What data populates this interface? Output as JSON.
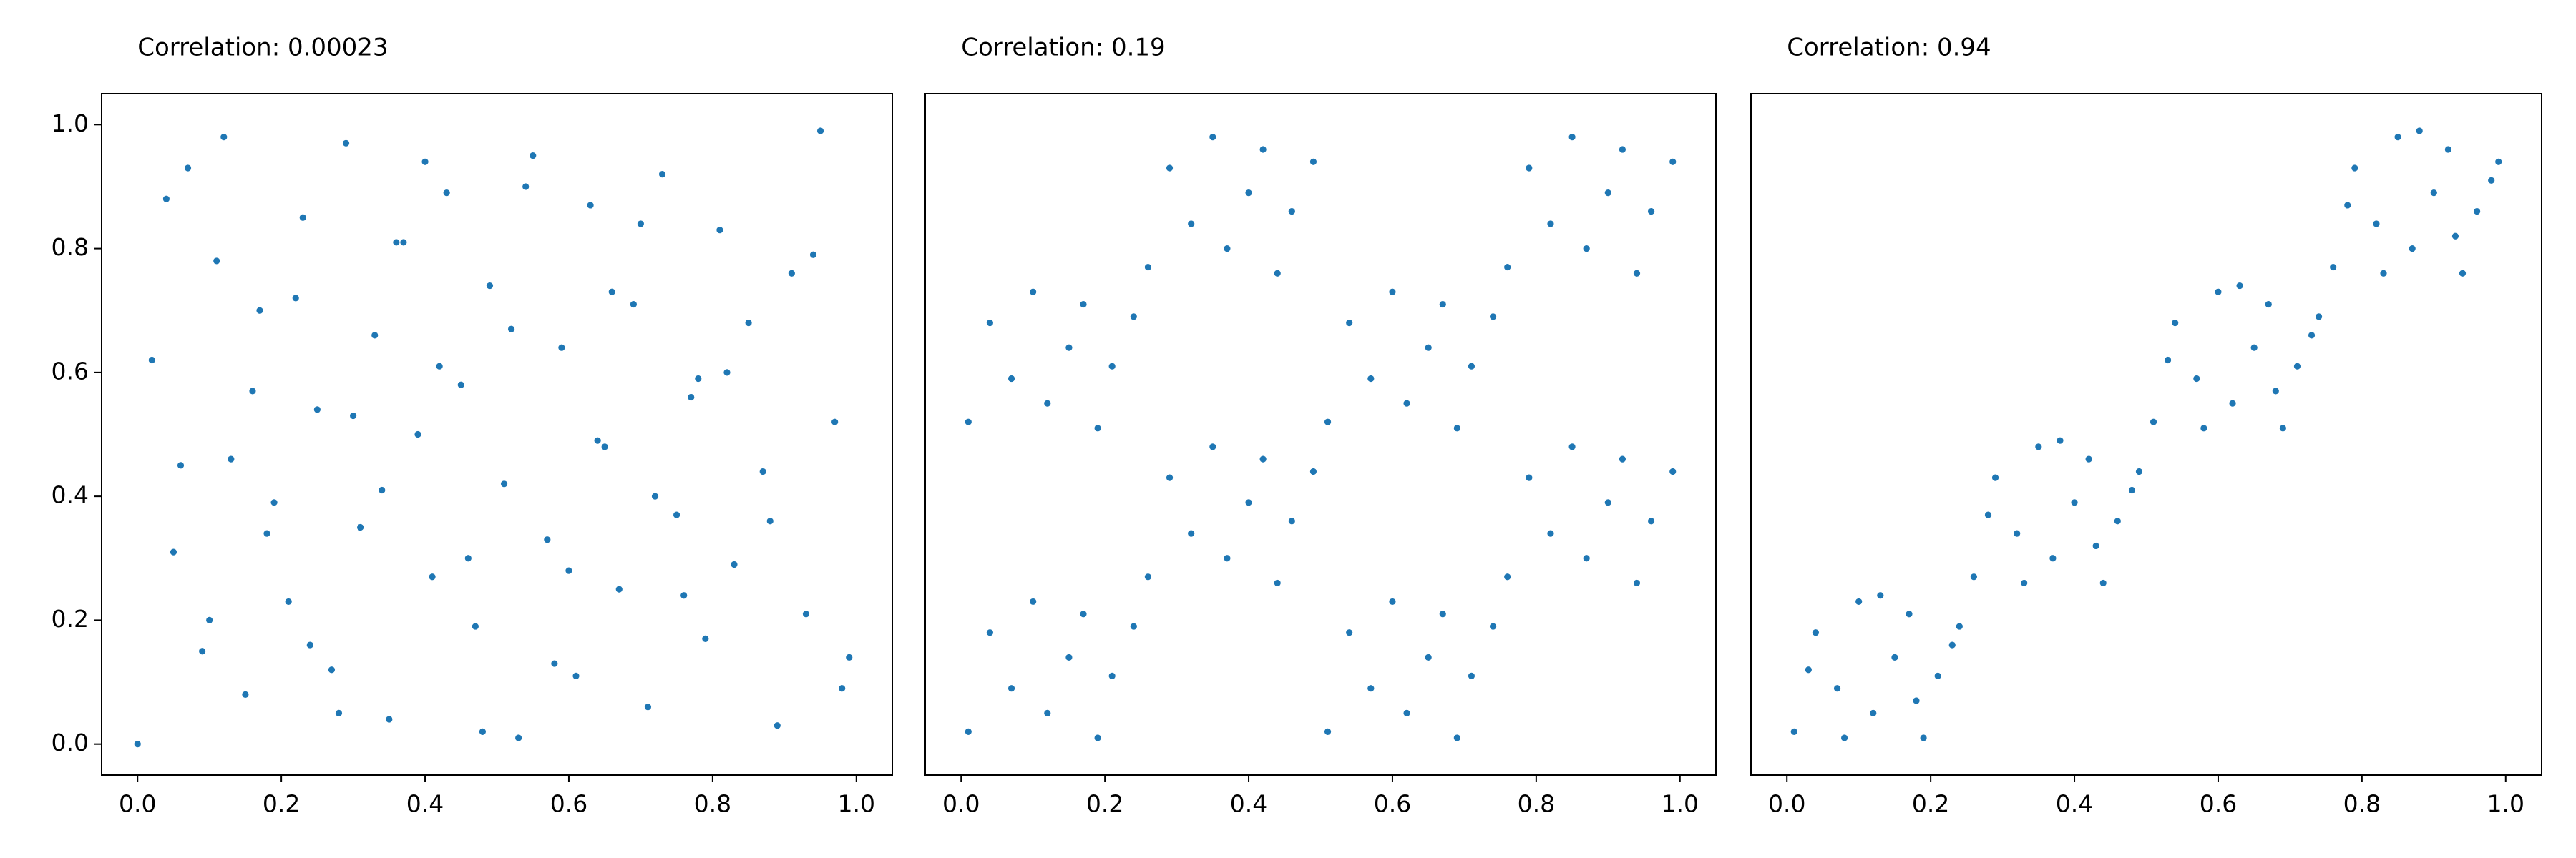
{
  "chart_data": [
    {
      "type": "scatter",
      "title": "Correlation: 0.00023",
      "color": "#1f77b4",
      "x": [
        0.0,
        0.02,
        0.05,
        0.07,
        0.09,
        0.11,
        0.13,
        0.15,
        0.17,
        0.19,
        0.21,
        0.23,
        0.25,
        0.27,
        0.29,
        0.31,
        0.33,
        0.35,
        0.37,
        0.39,
        0.41,
        0.43,
        0.45,
        0.47,
        0.49,
        0.51,
        0.53,
        0.55,
        0.57,
        0.59,
        0.61,
        0.63,
        0.65,
        0.67,
        0.69,
        0.71,
        0.73,
        0.75,
        0.77,
        0.79,
        0.81,
        0.83,
        0.85,
        0.87,
        0.89,
        0.91,
        0.93,
        0.95,
        0.97,
        0.99,
        0.04,
        0.1,
        0.16,
        0.22,
        0.28,
        0.34,
        0.4,
        0.46,
        0.52,
        0.58,
        0.64,
        0.7,
        0.76,
        0.82,
        0.88,
        0.94,
        0.98,
        0.06,
        0.12,
        0.18,
        0.24,
        0.3,
        0.36,
        0.42,
        0.48,
        0.54,
        0.6,
        0.66,
        0.72,
        0.78
      ],
      "y": [
        0.0,
        0.62,
        0.31,
        0.93,
        0.15,
        0.78,
        0.46,
        0.08,
        0.7,
        0.39,
        0.23,
        0.85,
        0.54,
        0.12,
        0.97,
        0.35,
        0.66,
        0.04,
        0.81,
        0.5,
        0.27,
        0.89,
        0.58,
        0.19,
        0.74,
        0.42,
        0.01,
        0.95,
        0.33,
        0.64,
        0.11,
        0.87,
        0.48,
        0.25,
        0.71,
        0.06,
        0.92,
        0.37,
        0.56,
        0.17,
        0.83,
        0.29,
        0.68,
        0.44,
        0.03,
        0.76,
        0.21,
        0.99,
        0.52,
        0.14,
        0.88,
        0.2,
        0.57,
        0.72,
        0.05,
        0.41,
        0.94,
        0.3,
        0.67,
        0.13,
        0.49,
        0.84,
        0.24,
        0.6,
        0.36,
        0.79,
        0.09,
        0.45,
        0.98,
        0.34,
        0.16,
        0.53,
        0.81,
        0.61,
        0.02,
        0.9,
        0.28,
        0.73,
        0.4,
        0.59
      ],
      "xlim": [
        -0.05,
        1.05
      ],
      "ylim": [
        -0.05,
        1.05
      ],
      "xticks": [
        {
          "value": 0,
          "label": "0.0"
        },
        {
          "value": 0.2,
          "label": "0.2"
        },
        {
          "value": 0.4,
          "label": "0.4"
        },
        {
          "value": 0.6,
          "label": "0.6"
        },
        {
          "value": 0.8,
          "label": "0.8"
        },
        {
          "value": 1,
          "label": "1.0"
        }
      ],
      "yticks": [
        {
          "value": 0,
          "label": "0.0"
        },
        {
          "value": 0.2,
          "label": "0.2"
        },
        {
          "value": 0.4,
          "label": "0.4"
        },
        {
          "value": 0.6,
          "label": "0.6"
        },
        {
          "value": 0.8,
          "label": "0.8"
        },
        {
          "value": 1,
          "label": "1.0"
        }
      ]
    },
    {
      "type": "scatter",
      "title": "Correlation: 0.19",
      "color": "#1f77b4",
      "x": [
        0.01,
        0.04,
        0.07,
        0.1,
        0.12,
        0.15,
        0.17,
        0.19,
        0.21,
        0.24,
        0.01,
        0.04,
        0.07,
        0.1,
        0.12,
        0.15,
        0.17,
        0.19,
        0.21,
        0.24,
        0.26,
        0.29,
        0.32,
        0.35,
        0.37,
        0.4,
        0.42,
        0.44,
        0.46,
        0.49,
        0.26,
        0.29,
        0.32,
        0.35,
        0.37,
        0.4,
        0.42,
        0.44,
        0.46,
        0.49,
        0.51,
        0.54,
        0.57,
        0.6,
        0.62,
        0.65,
        0.67,
        0.69,
        0.71,
        0.74,
        0.51,
        0.54,
        0.57,
        0.6,
        0.62,
        0.65,
        0.67,
        0.69,
        0.71,
        0.74,
        0.76,
        0.79,
        0.82,
        0.85,
        0.87,
        0.9,
        0.92,
        0.94,
        0.96,
        0.99,
        0.76,
        0.79,
        0.82,
        0.85,
        0.87,
        0.9,
        0.92,
        0.94,
        0.96,
        0.99
      ],
      "y": [
        0.02,
        0.18,
        0.09,
        0.23,
        0.05,
        0.14,
        0.21,
        0.01,
        0.11,
        0.19,
        0.52,
        0.68,
        0.59,
        0.73,
        0.55,
        0.64,
        0.71,
        0.51,
        0.61,
        0.69,
        0.27,
        0.43,
        0.34,
        0.48,
        0.3,
        0.39,
        0.46,
        0.26,
        0.36,
        0.44,
        0.77,
        0.93,
        0.84,
        0.98,
        0.8,
        0.89,
        0.96,
        0.76,
        0.86,
        0.94,
        0.02,
        0.18,
        0.09,
        0.23,
        0.05,
        0.14,
        0.21,
        0.01,
        0.11,
        0.19,
        0.52,
        0.68,
        0.59,
        0.73,
        0.55,
        0.64,
        0.71,
        0.51,
        0.61,
        0.69,
        0.27,
        0.43,
        0.34,
        0.48,
        0.3,
        0.39,
        0.46,
        0.26,
        0.36,
        0.44,
        0.77,
        0.93,
        0.84,
        0.98,
        0.8,
        0.89,
        0.96,
        0.76,
        0.86,
        0.94
      ],
      "xlim": [
        -0.05,
        1.05
      ],
      "ylim": [
        -0.05,
        1.05
      ],
      "xticks": [
        {
          "value": 0,
          "label": "0.0"
        },
        {
          "value": 0.2,
          "label": "0.2"
        },
        {
          "value": 0.4,
          "label": "0.4"
        },
        {
          "value": 0.6,
          "label": "0.6"
        },
        {
          "value": 0.8,
          "label": "0.8"
        },
        {
          "value": 1,
          "label": "1.0"
        }
      ]
    },
    {
      "type": "scatter",
      "title": "Correlation: 0.94",
      "color": "#1f77b4",
      "x": [
        0.01,
        0.04,
        0.07,
        0.1,
        0.12,
        0.15,
        0.17,
        0.19,
        0.21,
        0.24,
        0.03,
        0.08,
        0.13,
        0.18,
        0.23,
        0.26,
        0.29,
        0.32,
        0.35,
        0.37,
        0.4,
        0.42,
        0.44,
        0.46,
        0.49,
        0.28,
        0.33,
        0.38,
        0.43,
        0.48,
        0.51,
        0.54,
        0.57,
        0.6,
        0.62,
        0.65,
        0.67,
        0.69,
        0.71,
        0.74,
        0.53,
        0.58,
        0.63,
        0.68,
        0.73,
        0.76,
        0.79,
        0.82,
        0.85,
        0.87,
        0.9,
        0.92,
        0.94,
        0.96,
        0.99,
        0.78,
        0.83,
        0.88,
        0.93,
        0.98
      ],
      "y": [
        0.02,
        0.18,
        0.09,
        0.23,
        0.05,
        0.14,
        0.21,
        0.01,
        0.11,
        0.19,
        0.12,
        0.01,
        0.24,
        0.07,
        0.16,
        0.27,
        0.43,
        0.34,
        0.48,
        0.3,
        0.39,
        0.46,
        0.26,
        0.36,
        0.44,
        0.37,
        0.26,
        0.49,
        0.32,
        0.41,
        0.52,
        0.68,
        0.59,
        0.73,
        0.55,
        0.64,
        0.71,
        0.51,
        0.61,
        0.69,
        0.62,
        0.51,
        0.74,
        0.57,
        0.66,
        0.77,
        0.93,
        0.84,
        0.98,
        0.8,
        0.89,
        0.96,
        0.76,
        0.86,
        0.94,
        0.87,
        0.76,
        0.99,
        0.82,
        0.91
      ],
      "xlim": [
        -0.05,
        1.05
      ],
      "ylim": [
        -0.05,
        1.05
      ],
      "xticks": [
        {
          "value": 0,
          "label": "0.0"
        },
        {
          "value": 0.2,
          "label": "0.2"
        },
        {
          "value": 0.4,
          "label": "0.4"
        },
        {
          "value": 0.6,
          "label": "0.6"
        },
        {
          "value": 0.8,
          "label": "0.8"
        },
        {
          "value": 1,
          "label": "1.0"
        }
      ]
    }
  ]
}
